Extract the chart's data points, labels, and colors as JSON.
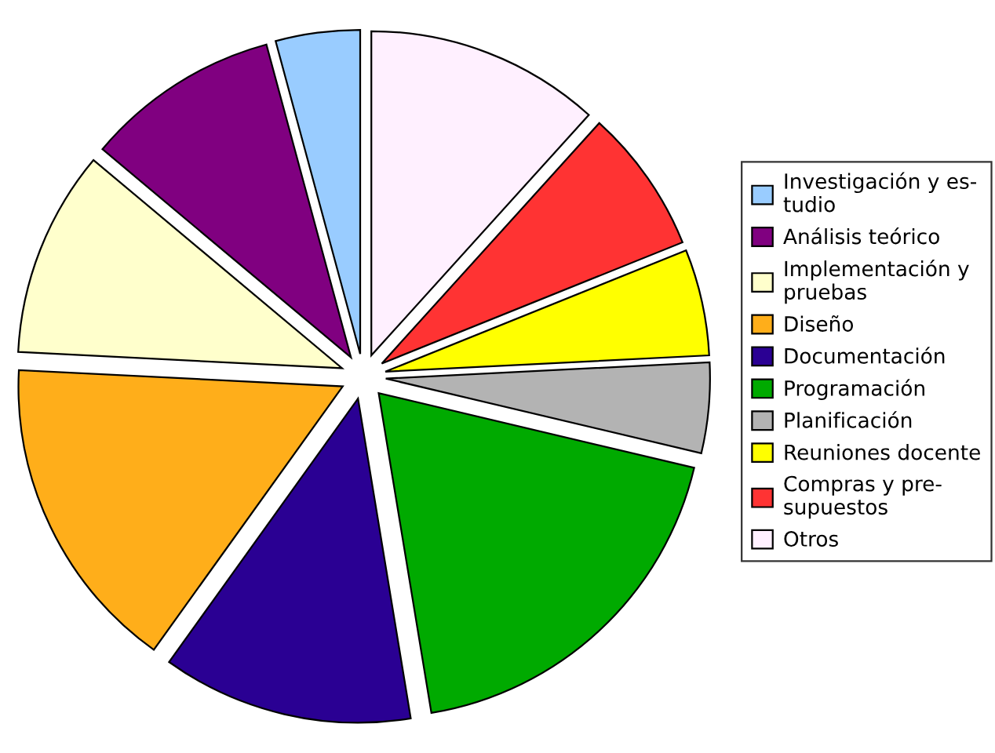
{
  "chart_data": {
    "type": "pie",
    "categories": [
      "Investigación y es-\ntudio",
      "Análisis teórico",
      "Implementación y\npruebas",
      "Diseño",
      "Documentación",
      "Programación",
      "Planificación",
      "Reuniones docente",
      "Compras y pre-\nsupuestos",
      "Otros"
    ],
    "values": [
      4.2,
      9.7,
      10.3,
      15.9,
      12.5,
      18.7,
      4.5,
      5.3,
      7.2,
      11.7
    ],
    "colors": [
      "#99ccff",
      "#800080",
      "#ffffcc",
      "#ffae1a",
      "#2a0093",
      "#00aa00",
      "#b3b3b3",
      "#ffff00",
      "#ff3333",
      "#fff0ff"
    ],
    "legend": "right"
  }
}
